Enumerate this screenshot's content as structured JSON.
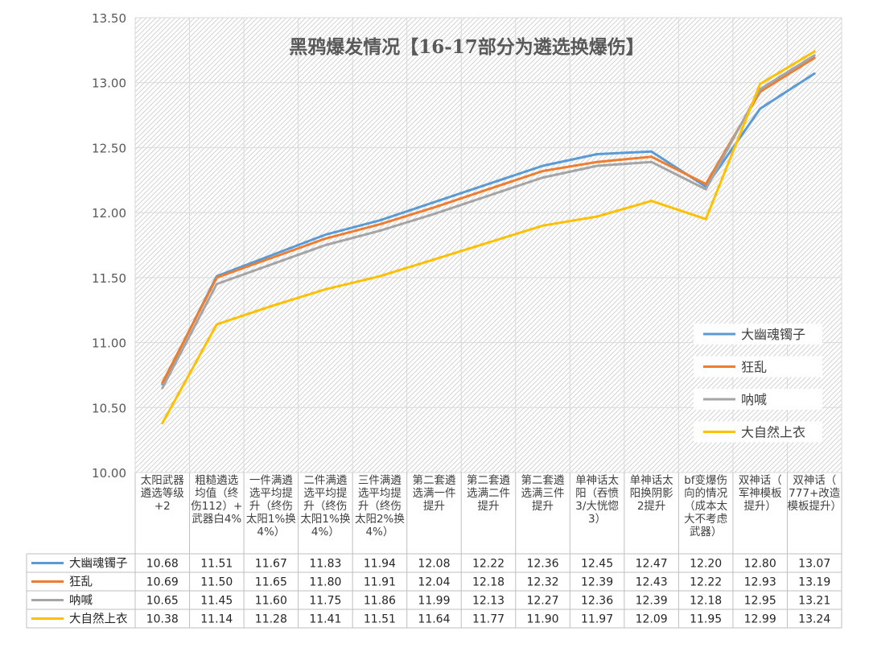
{
  "chart_data": {
    "type": "line",
    "title": "黑鸦爆发情况【16-17部分为遴选换爆伤】",
    "xlabel": "",
    "ylabel": "",
    "ylim": [
      10.0,
      13.5
    ],
    "yticks": [
      "10.00",
      "10.50",
      "11.00",
      "11.50",
      "12.00",
      "12.50",
      "13.00",
      "13.50"
    ],
    "grid": true,
    "legend_position": "right",
    "categories": [
      "太阳武器遴选等级+2",
      "粗糙遴选均值（终伤112）+武器白4%",
      "一件满遴选平均提升（终伤太阳1%换4%）",
      "二件满遴选平均提升（终伤太阳1%换4%）",
      "三件满遴选平均提升（终伤太阳2%换4%）",
      "第二套遴选满一件提升",
      "第二套遴选满二件提升",
      "第二套遴选满三件提升",
      "单神话太阳（吞愤3/大恍惚3）",
      "单神话太阳换阴影2提升",
      "bf变爆伤向的情况（成本太大不考虑武器）",
      "双神话（军神模板提升）",
      "双神话（777+改造模板提升）"
    ],
    "category_lines": [
      [
        "太阳武器",
        "遴选等级",
        "+2"
      ],
      [
        "粗糙遴选",
        "均值（终",
        "伤112）+",
        "武器白4%"
      ],
      [
        "一件满遴",
        "选平均提",
        "升（终伤",
        "太阳1%换",
        "4%）"
      ],
      [
        "二件满遴",
        "选平均提",
        "升（终伤",
        "太阳1%换",
        "4%）"
      ],
      [
        "三件满遴",
        "选平均提",
        "升（终伤",
        "太阳2%换",
        "4%）"
      ],
      [
        "第二套遴",
        "选满一件",
        "提升"
      ],
      [
        "第二套遴",
        "选满二件",
        "提升"
      ],
      [
        "第二套遴",
        "选满三件",
        "提升"
      ],
      [
        "单神话太",
        "阳（吞愤",
        "3/大恍惚",
        "3）"
      ],
      [
        "单神话太",
        "阳换阴影",
        "2提升"
      ],
      [
        "bf变爆伤",
        "向的情况",
        "（成本太",
        "大不考虑",
        "武器）"
      ],
      [
        "双神话（",
        "军神模板",
        "提升）"
      ],
      [
        "双神话（",
        "777+改造",
        "模板提升）"
      ]
    ],
    "series": [
      {
        "name": "大幽魂镯子",
        "color": "#5b9bd5",
        "values": [
          10.68,
          11.51,
          11.67,
          11.83,
          11.94,
          12.08,
          12.22,
          12.36,
          12.45,
          12.47,
          12.2,
          12.8,
          13.07
        ],
        "labels": [
          "10.68",
          "11.51",
          "11.67",
          "11.83",
          "11.94",
          "12.08",
          "12.22",
          "12.36",
          "12.45",
          "12.47",
          "12.20",
          "12.80",
          "13.07"
        ]
      },
      {
        "name": "狂乱",
        "color": "#ed7d31",
        "values": [
          10.69,
          11.5,
          11.65,
          11.8,
          11.91,
          12.04,
          12.18,
          12.32,
          12.39,
          12.43,
          12.22,
          12.93,
          13.19
        ],
        "labels": [
          "10.69",
          "11.50",
          "11.65",
          "11.80",
          "11.91",
          "12.04",
          "12.18",
          "12.32",
          "12.39",
          "12.43",
          "12.22",
          "12.93",
          "13.19"
        ]
      },
      {
        "name": "呐喊",
        "color": "#a5a5a5",
        "values": [
          10.65,
          11.45,
          11.6,
          11.75,
          11.86,
          11.99,
          12.13,
          12.27,
          12.36,
          12.39,
          12.18,
          12.95,
          13.21
        ],
        "labels": [
          "10.65",
          "11.45",
          "11.60",
          "11.75",
          "11.86",
          "11.99",
          "12.13",
          "12.27",
          "12.36",
          "12.39",
          "12.18",
          "12.95",
          "13.21"
        ]
      },
      {
        "name": "大自然上衣",
        "color": "#ffc000",
        "values": [
          10.38,
          11.14,
          11.28,
          11.41,
          11.51,
          11.64,
          11.77,
          11.9,
          11.97,
          12.09,
          11.95,
          12.99,
          13.24
        ],
        "labels": [
          "10.38",
          "11.14",
          "11.28",
          "11.41",
          "11.51",
          "11.64",
          "11.77",
          "11.90",
          "11.97",
          "12.09",
          "11.95",
          "12.99",
          "13.24"
        ]
      }
    ]
  }
}
